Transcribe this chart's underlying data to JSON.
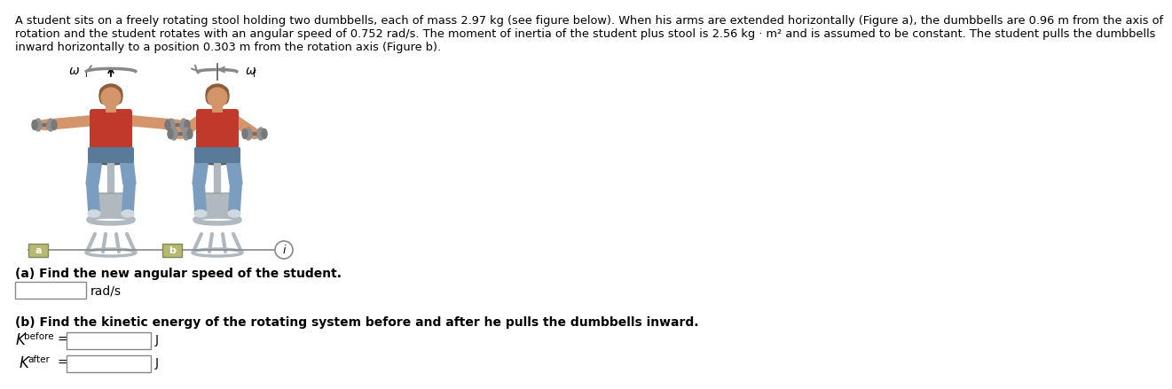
{
  "line1": "A student sits on a freely rotating stool holding two dumbbells, each of mass 2.97 kg (see figure below). When his arms are extended horizontally (Figure a), the dumbbells are 0.96 m from the axis of",
  "line2": "rotation and the student rotates with an angular speed of 0.752 rad/s. The moment of inertia of the student plus stool is 2.56 kg · m² and is assumed to be constant. The student pulls the dumbbells",
  "line3": "inward horizontally to a position 0.303 m from the rotation axis (Figure b).",
  "part_a_label": "(a) Find the new angular speed of the student.",
  "part_a_unit": "rad/s",
  "part_b_label": "(b) Find the kinetic energy of the rotating system before and after he pulls the dumbbells inward.",
  "omega_i": "ω",
  "omega_i_sub": "i",
  "omega_f": "ω",
  "omega_f_sub": "f",
  "label_a": "a",
  "label_b": "b",
  "background_color": "#ffffff",
  "text_color": "#000000",
  "skin_color": "#D4956A",
  "shirt_color": "#C0392B",
  "pants_color": "#7B9DC0",
  "hair_color": "#8B5E3C",
  "stool_color": "#B0B8C0",
  "dumbbell_color": "#909090",
  "nav_line_color": "#888888",
  "box_fill": "#B8B88A",
  "input_box_color": "#E8E8E8",
  "input_box_edge": "#888888"
}
